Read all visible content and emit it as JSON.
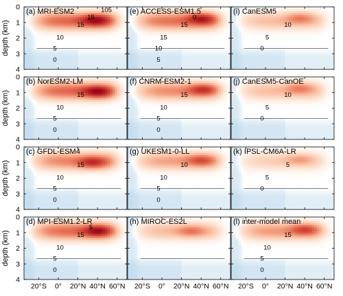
{
  "chart_data": {
    "type": "heatmap",
    "ylabel": "depth (km)",
    "xlim": [
      -35,
      70
    ],
    "ylim": [
      0,
      4
    ],
    "yticks": [
      "0",
      "1",
      "2",
      "3",
      "4"
    ],
    "xticks": [
      "20°S",
      "0°",
      "20°N",
      "40°N",
      "60°N"
    ],
    "xtick_values": [
      -20,
      0,
      20,
      40,
      60
    ],
    "colors": {
      "warm_max": "#b2182b",
      "cool": "#d6e8f4"
    },
    "panels": [
      {
        "title": "(a) MRI-ESM2",
        "peak": 25,
        "core_lat": 38,
        "core_depth": 0.85,
        "labels": [
          "15",
          "10",
          "5",
          "0",
          "15",
          "105"
        ]
      },
      {
        "title": "(b) NorESM2-LM",
        "peak": 25,
        "core_lat": 40,
        "core_depth": 0.95,
        "labels": [
          "15",
          "10",
          "5",
          "0"
        ]
      },
      {
        "title": "(c) GFDL-ESM4",
        "peak": 20,
        "core_lat": 35,
        "core_depth": 1.0,
        "labels": [
          "15",
          "10",
          "5",
          "0"
        ]
      },
      {
        "title": "(d) MPI-ESM1.2-LR",
        "peak": 24,
        "core_lat": 40,
        "core_depth": 0.9,
        "labels": [
          "15",
          "10",
          "5",
          "0",
          "5"
        ]
      },
      {
        "title": "(e) ACCESS-ESM1.5",
        "peak": 23,
        "core_lat": 40,
        "core_depth": 0.75,
        "labels": [
          "15",
          "15",
          "10",
          "5",
          "0"
        ]
      },
      {
        "title": "(f) CNRM-ESM2-1",
        "peak": 19,
        "core_lat": 42,
        "core_depth": 0.8,
        "labels": [
          "15",
          "10",
          "5",
          "0"
        ]
      },
      {
        "title": "(g) UKESM1-0-LL",
        "peak": 16,
        "core_lat": 40,
        "core_depth": 0.85,
        "labels": [
          "10",
          "10",
          "5",
          "0"
        ]
      },
      {
        "title": "(h) MIROC-ES2L",
        "peak": 12,
        "core_lat": 30,
        "core_depth": 0.9,
        "labels": []
      },
      {
        "title": "(i) CanESM5",
        "peak": 12,
        "core_lat": 35,
        "core_depth": 0.7,
        "labels": [
          "10",
          "5",
          "0"
        ]
      },
      {
        "title": "(j) CanESM5-CanOE",
        "peak": 12,
        "core_lat": 35,
        "core_depth": 0.7,
        "labels": [
          "10",
          "5",
          "0"
        ]
      },
      {
        "title": "(k) IPSL-CM6A-LR",
        "peak": 9,
        "core_lat": 35,
        "core_depth": 0.8,
        "labels": [
          "5",
          "5",
          "0"
        ]
      },
      {
        "title": "(l) inter-model mean",
        "peak": 17,
        "core_lat": 40,
        "core_depth": 0.8,
        "labels": [
          "15",
          "10",
          "5",
          "0"
        ]
      }
    ]
  }
}
